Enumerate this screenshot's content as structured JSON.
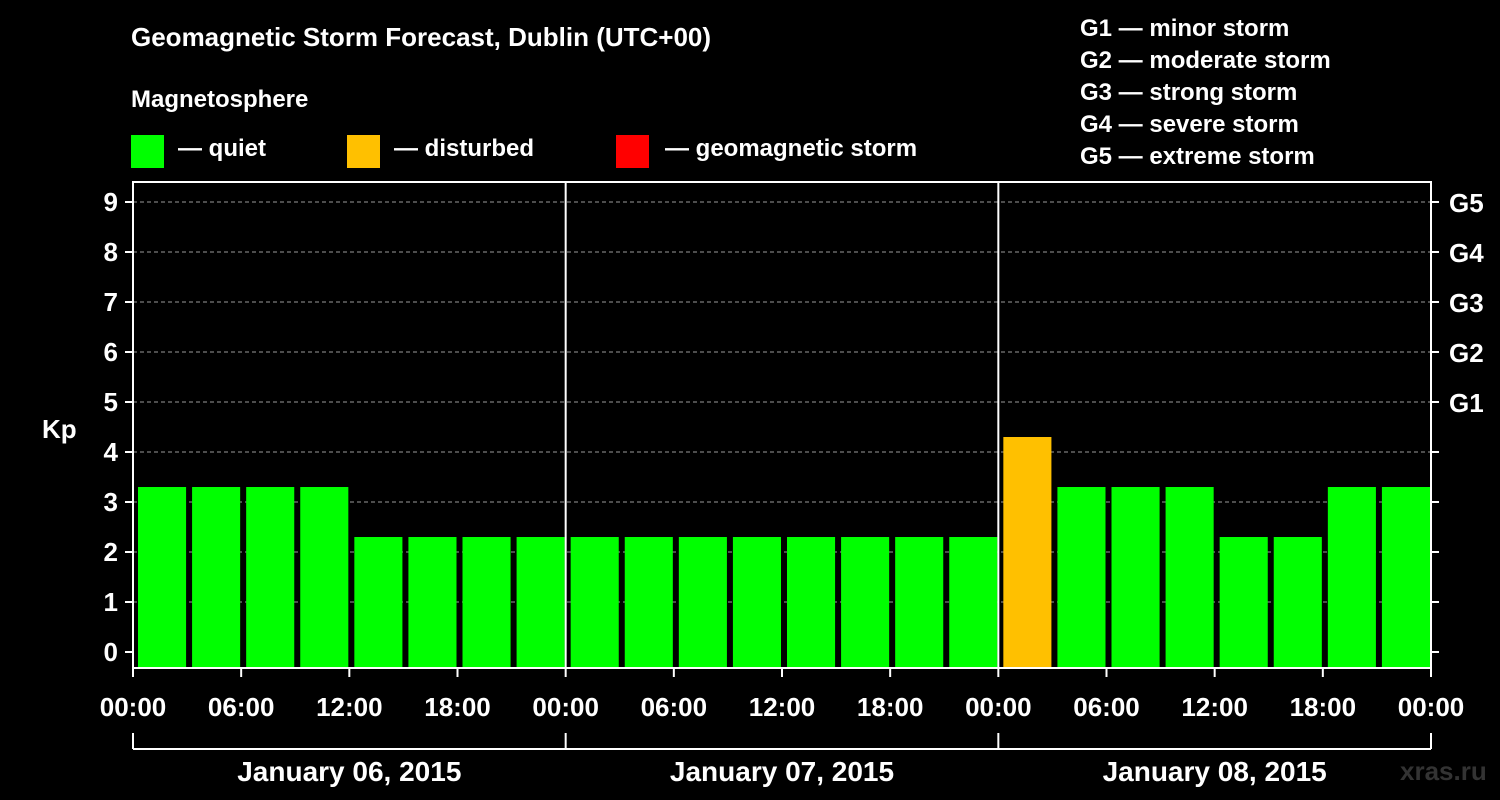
{
  "title": "Geomagnetic Storm Forecast, Dublin (UTC+00)",
  "magnetosphere": {
    "heading": "Magnetosphere",
    "items": [
      {
        "label": "— quiet",
        "color": "#00ff00"
      },
      {
        "label": "— disturbed",
        "color": "#ffc000"
      },
      {
        "label": "— geomagnetic storm",
        "color": "#ff0000"
      }
    ]
  },
  "g_legend": [
    "G1 — minor storm",
    "G2 — moderate storm",
    "G3 — strong storm",
    "G4 — severe storm",
    "G5 — extreme storm"
  ],
  "watermark": "xras.ru",
  "chart_data": {
    "type": "bar",
    "ylabel": "Kp",
    "ylim": [
      0,
      9
    ],
    "yticks": [
      0,
      1,
      2,
      3,
      4,
      5,
      6,
      7,
      8,
      9
    ],
    "right_ticks": [
      {
        "kp": 5,
        "label": "G1"
      },
      {
        "kp": 6,
        "label": "G2"
      },
      {
        "kp": 7,
        "label": "G3"
      },
      {
        "kp": 8,
        "label": "G4"
      },
      {
        "kp": 9,
        "label": "G5"
      }
    ],
    "x_tick_labels": [
      "00:00",
      "06:00",
      "12:00",
      "18:00",
      "00:00",
      "06:00",
      "12:00",
      "18:00",
      "00:00",
      "06:00",
      "12:00",
      "18:00",
      "00:00"
    ],
    "days": [
      "January 06, 2015",
      "January 07, 2015",
      "January 08, 2015"
    ],
    "interval_hours": 3,
    "values": [
      3,
      3,
      3,
      3,
      2,
      2,
      2,
      2,
      2,
      2,
      2,
      2,
      2,
      2,
      2,
      2,
      4,
      3,
      3,
      3,
      2,
      2,
      3,
      3
    ],
    "colors": {
      "quiet": "#00ff00",
      "disturbed": "#ffc000",
      "storm": "#ff0000"
    },
    "grid": "dashed horizontal"
  }
}
